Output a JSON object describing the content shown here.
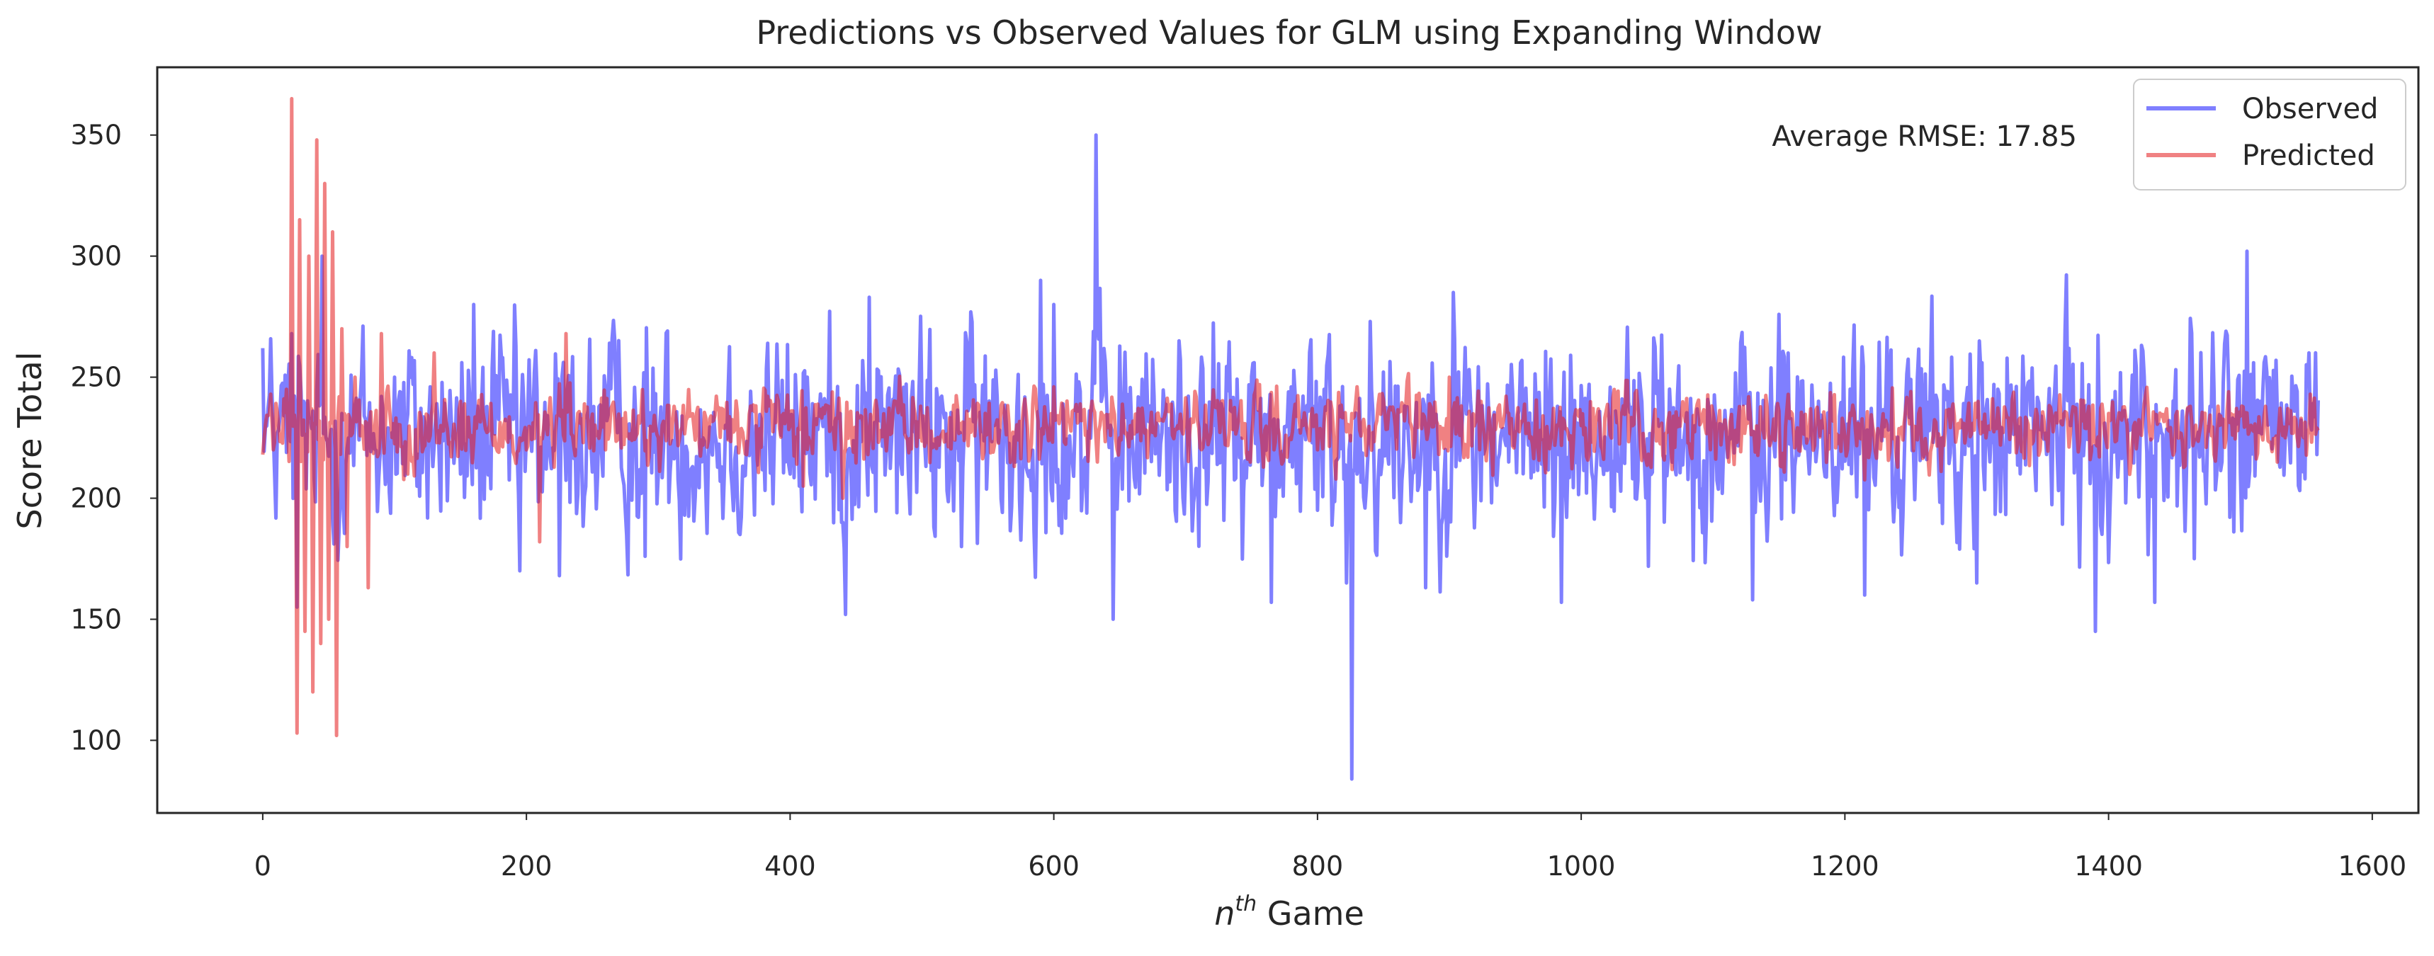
{
  "chart_data": {
    "type": "line",
    "title": "Predictions vs Observed Values for GLM using Expanding Window",
    "xlabel_main": "n",
    "xlabel_sup": "th",
    "xlabel_rest": " Game",
    "ylabel": "Score Total",
    "xlim": [
      -80,
      1635
    ],
    "ylim": [
      70,
      378
    ],
    "xticks": [
      0,
      200,
      400,
      600,
      800,
      1000,
      1200,
      1400,
      1600
    ],
    "yticks": [
      100,
      150,
      200,
      250,
      300,
      350
    ],
    "grid": false,
    "legend_position": "top-right",
    "annotation": "Average RMSE: 17.85",
    "n_points": 1560,
    "series": [
      {
        "name": "Observed",
        "color": "#0000ff",
        "opacity": 0.5,
        "level": 226,
        "noise_amplitude": 20,
        "anchor_points": [
          [
            0,
            262
          ],
          [
            12,
            228
          ],
          [
            22,
            268
          ],
          [
            26,
            155
          ],
          [
            31,
            240
          ],
          [
            38,
            236
          ],
          [
            45,
            300
          ],
          [
            60,
            235
          ],
          [
            100,
            250
          ],
          [
            150,
            210
          ],
          [
            160,
            280
          ],
          [
            195,
            170
          ],
          [
            225,
            168
          ],
          [
            290,
            176
          ],
          [
            400,
            210
          ],
          [
            413,
            250
          ],
          [
            440,
            190
          ],
          [
            442,
            152
          ],
          [
            450,
            214
          ],
          [
            460,
            283
          ],
          [
            530,
            180
          ],
          [
            590,
            290
          ],
          [
            600,
            280
          ],
          [
            632,
            350
          ],
          [
            636,
            240
          ],
          [
            645,
            150
          ],
          [
            700,
            213
          ],
          [
            765,
            157
          ],
          [
            800,
            195
          ],
          [
            822,
            165
          ],
          [
            826,
            84
          ],
          [
            830,
            210
          ],
          [
            840,
            273
          ],
          [
            882,
            163
          ],
          [
            903,
            285
          ],
          [
            985,
            157
          ],
          [
            1130,
            158
          ],
          [
            1215,
            160
          ],
          [
            1300,
            165
          ],
          [
            1390,
            145
          ],
          [
            1435,
            157
          ],
          [
            1465,
            175
          ],
          [
            1505,
            302
          ],
          [
            1515,
            240
          ],
          [
            1552,
            260
          ],
          [
            1558,
            218
          ]
        ]
      },
      {
        "name": "Predicted",
        "color": "#e31a1c",
        "opacity": 0.55,
        "level": 229,
        "noise_amplitude": 7,
        "anchor_points": [
          [
            0,
            218
          ],
          [
            8,
            220
          ],
          [
            18,
            245
          ],
          [
            22,
            365
          ],
          [
            26,
            103
          ],
          [
            28,
            315
          ],
          [
            32,
            145
          ],
          [
            35,
            300
          ],
          [
            38,
            120
          ],
          [
            41,
            348
          ],
          [
            44,
            140
          ],
          [
            47,
            330
          ],
          [
            50,
            150
          ],
          [
            53,
            310
          ],
          [
            56,
            102
          ],
          [
            60,
            270
          ],
          [
            64,
            180
          ],
          [
            70,
            250
          ],
          [
            80,
            163
          ],
          [
            90,
            268
          ],
          [
            110,
            210
          ],
          [
            130,
            260
          ],
          [
            150,
            240
          ],
          [
            200,
            220
          ],
          [
            210,
            182
          ],
          [
            230,
            268
          ],
          [
            260,
            220
          ],
          [
            300,
            225
          ],
          [
            400,
            230
          ],
          [
            410,
            205
          ],
          [
            440,
            200
          ],
          [
            480,
            240
          ],
          [
            600,
            246
          ],
          [
            650,
            225
          ],
          [
            800,
            220
          ],
          [
            900,
            250
          ],
          [
            1000,
            230
          ],
          [
            1200,
            225
          ],
          [
            1400,
            235
          ],
          [
            1558,
            229
          ]
        ]
      }
    ]
  }
}
